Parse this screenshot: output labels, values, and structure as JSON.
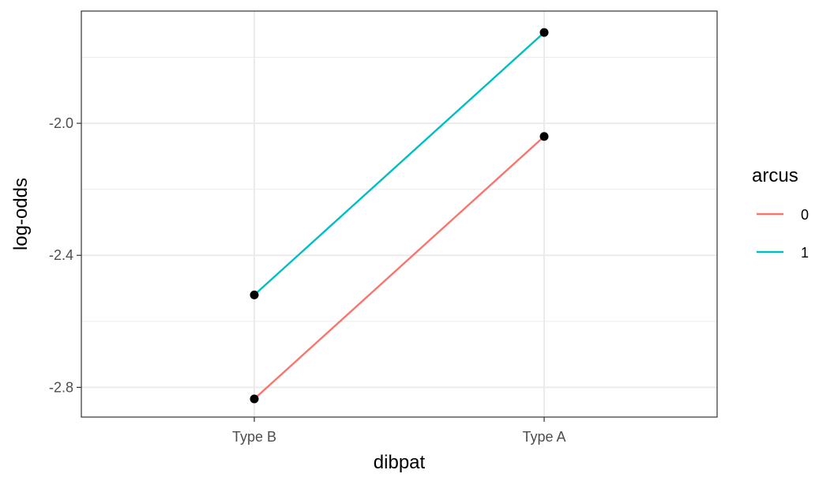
{
  "chart_data": {
    "type": "line",
    "xlabel": "dibpat",
    "ylabel": "log-odds",
    "categories": [
      "Type B",
      "Type A"
    ],
    "ylim": [
      -2.89,
      -1.66
    ],
    "yticks": [
      -2.8,
      -2.4,
      -2.0
    ],
    "ytick_labels": [
      "-2.8",
      "-2.4",
      "-2.0"
    ],
    "minor_yticks": [
      -2.6,
      -2.2,
      -1.8
    ],
    "grid": true,
    "legend": {
      "title": "arcus",
      "position": "right"
    },
    "series": [
      {
        "name": "0",
        "color": "#F8766D",
        "values": [
          -2.835,
          -2.04
        ]
      },
      {
        "name": "1",
        "color": "#00BFC4",
        "values": [
          -2.52,
          -1.725
        ]
      }
    ],
    "point_color": "#000000"
  }
}
